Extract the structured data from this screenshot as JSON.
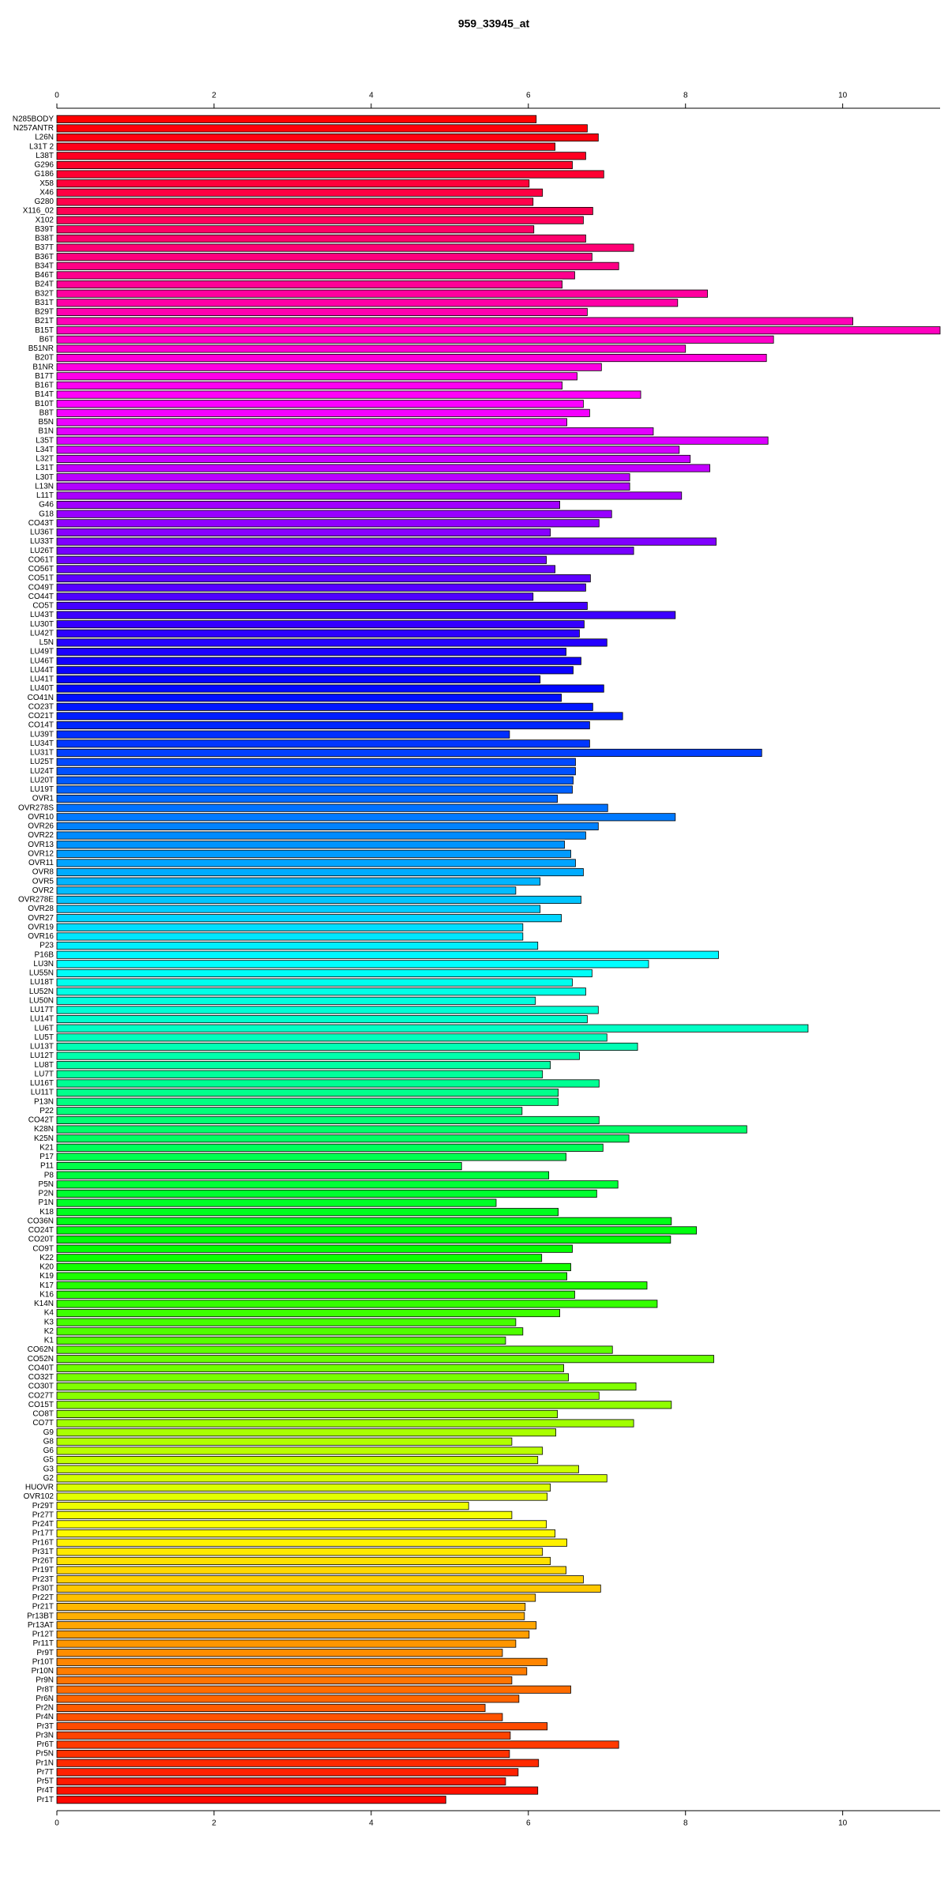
{
  "chart_data": {
    "type": "barh",
    "title": "959_33945_at",
    "categories": [
      "N285BODY",
      "N257ANTR",
      "L26N",
      "L31T 2",
      "L38T",
      "G296",
      "G186",
      "X58",
      "X46",
      "G280",
      "X116_02",
      "X102",
      "B39T",
      "B38T",
      "B37T",
      "B36T",
      "B34T",
      "B46T",
      "B24T",
      "B32T",
      "B31T",
      "B29T",
      "B21T",
      "B15T",
      "B6T",
      "B51NR",
      "B20T",
      "B1NR",
      "B17T",
      "B16T",
      "B14T",
      "B10T",
      "B8T",
      "B5N",
      "B1N",
      "L35T",
      "L34T",
      "L32T",
      "L31T",
      "L30T",
      "L13N",
      "L11T",
      "G46",
      "G18",
      "CO43T",
      "LU36T",
      "LU33T",
      "LU26T",
      "CO61T",
      "CO56T",
      "CO51T",
      "CO49T",
      "CO44T",
      "CO5T",
      "LU43T",
      "LU30T",
      "LU42T",
      "L5N",
      "LU49T",
      "LU46T",
      "LU44T",
      "LU41T",
      "LU40T",
      "CO41N",
      "CO23T",
      "CO21T",
      "CO14T",
      "LU39T",
      "LU34T",
      "LU31T",
      "LU25T",
      "LU24T",
      "LU20T",
      "LU19T",
      "OVR1",
      "OVR278S",
      "OVR10",
      "OVR26",
      "OVR22",
      "OVR13",
      "OVR12",
      "OVR11",
      "OVR8",
      "OVR5",
      "OVR2",
      "OVR278E",
      "OVR28",
      "OVR27",
      "OVR19",
      "OVR16",
      "P23",
      "P16B",
      "LU3N",
      "LU55N",
      "LU18T",
      "LU52N",
      "LU50N",
      "LU17T",
      "LU14T",
      "LU6T",
      "LU5T",
      "LU13T",
      "LU12T",
      "LU8T",
      "LU7T",
      "LU16T",
      "LU11T",
      "P13N",
      "P22",
      "CO42T",
      "K28N",
      "K25N",
      "K21",
      "P17",
      "P11",
      "P8",
      "P5N",
      "P2N",
      "P1N",
      "K18",
      "CO36N",
      "CO24T",
      "CO20T",
      "CO9T",
      "K22",
      "K20",
      "K19",
      "K17",
      "K16",
      "K14N",
      "K4",
      "K3",
      "K2",
      "K1",
      "CO62N",
      "CO52N",
      "CO40T",
      "CO32T",
      "CO30T",
      "CO27T",
      "CO15T",
      "CO8T",
      "CO7T",
      "G9",
      "G8",
      "G6",
      "G5",
      "G3",
      "G2",
      "HUOVR",
      "OVR102",
      "Pr29T",
      "Pr27T",
      "Pr24T",
      "Pr17T",
      "Pr16T",
      "Pr31T",
      "Pr26T",
      "Pr19T",
      "Pr23T",
      "Pr30T",
      "Pr22T",
      "Pr21T",
      "Pr13BT",
      "Pr13AT",
      "Pr12T",
      "Pr11T",
      "Pr9T",
      "Pr10T",
      "Pr10N",
      "Pr9N",
      "Pr8T",
      "Pr6N",
      "Pr2N",
      "Pr4N",
      "Pr3T",
      "Pr3N",
      "Pr6T",
      "Pr5N",
      "Pr1N",
      "Pr7T",
      "Pr5T",
      "Pr4T",
      "Pr1T"
    ],
    "values": [
      6.1,
      6.75,
      6.89,
      6.34,
      6.73,
      6.56,
      6.96,
      6.01,
      6.18,
      6.06,
      6.82,
      6.7,
      6.07,
      6.73,
      7.34,
      6.81,
      7.15,
      6.59,
      6.43,
      8.28,
      7.9,
      6.75,
      10.13,
      11.24,
      9.12,
      8.0,
      9.03,
      6.93,
      6.62,
      6.43,
      7.43,
      6.7,
      6.78,
      6.49,
      7.59,
      9.05,
      7.92,
      8.06,
      8.31,
      7.29,
      7.29,
      7.95,
      6.4,
      7.06,
      6.9,
      6.28,
      8.39,
      7.34,
      6.23,
      6.34,
      6.79,
      6.73,
      6.06,
      6.75,
      7.87,
      6.71,
      6.65,
      7.0,
      6.48,
      6.67,
      6.57,
      6.15,
      6.96,
      6.42,
      6.82,
      7.2,
      6.78,
      5.76,
      6.78,
      8.97,
      6.6,
      6.6,
      6.57,
      6.56,
      6.37,
      7.01,
      7.87,
      6.89,
      6.73,
      6.46,
      6.54,
      6.6,
      6.7,
      6.15,
      5.84,
      6.67,
      6.15,
      6.42,
      5.93,
      5.93,
      6.12,
      8.42,
      7.53,
      6.81,
      6.56,
      6.73,
      6.09,
      6.89,
      6.75,
      9.56,
      7.0,
      7.39,
      6.65,
      6.28,
      6.18,
      6.9,
      6.38,
      6.38,
      5.92,
      6.9,
      8.78,
      7.28,
      6.95,
      6.48,
      5.15,
      6.26,
      7.14,
      6.87,
      5.59,
      6.38,
      7.82,
      8.14,
      7.81,
      6.56,
      6.17,
      6.54,
      6.49,
      7.51,
      6.59,
      7.64,
      6.4,
      5.84,
      5.93,
      5.71,
      7.07,
      8.36,
      6.45,
      6.51,
      7.37,
      6.9,
      7.82,
      6.37,
      7.34,
      6.35,
      5.79,
      6.18,
      6.12,
      6.64,
      7.0,
      6.28,
      6.24,
      5.24,
      5.79,
      6.23,
      6.34,
      6.49,
      6.18,
      6.28,
      6.48,
      6.7,
      6.92,
      6.09,
      5.96,
      5.95,
      6.1,
      6.01,
      5.84,
      5.67,
      6.24,
      5.98,
      5.79,
      6.54,
      5.88,
      5.45,
      5.67,
      6.24,
      5.77,
      7.15,
      5.76,
      6.13,
      5.87,
      5.71,
      6.12,
      4.95
    ],
    "bar_colors": {
      "scheme": "hsl",
      "hue_start": 360,
      "hue_end": 0,
      "saturation": 100,
      "lightness": 50
    },
    "xlim": [
      0,
      11.24
    ],
    "xticks": [
      0,
      2,
      4,
      6,
      8,
      10
    ]
  }
}
